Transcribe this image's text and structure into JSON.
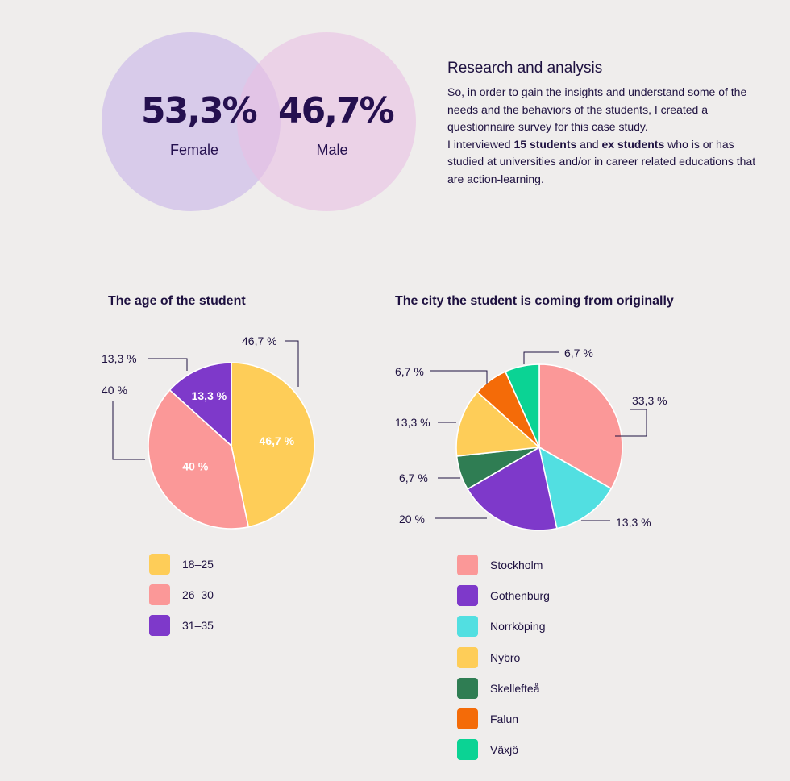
{
  "venn": {
    "female_pct": "53,3%",
    "female_label": "Female",
    "male_pct": "46,7%",
    "male_label": "Male"
  },
  "research": {
    "title": "Research and analysis",
    "p1": "So, in order to gain the insights and understand some of the needs and the behaviors of the students, I created a questionnaire survey for this case study.",
    "p2_a": "I interviewed ",
    "p2_b": "15 students",
    "p2_c": " and ",
    "p2_d": "ex students",
    "p2_e": " who is or has studied at universities and/or in career related educations that are action-learning."
  },
  "chart_data": [
    {
      "type": "pie",
      "title": "The age of the student",
      "categories": [
        "18–25",
        "26–30",
        "31–35"
      ],
      "values": [
        46.7,
        40,
        13.3
      ],
      "labels": [
        "46,7 %",
        "40 %",
        "13,3 %"
      ],
      "colors": [
        "#fecd58",
        "#fb9898",
        "#7e39ca"
      ],
      "legend": "bottom"
    },
    {
      "type": "pie",
      "title": "The city the student is coming from originally",
      "categories": [
        "Stockholm",
        "Norrköping",
        "Gothenburg",
        "Skellefteå",
        "Nybro",
        "Falun",
        "Växjö"
      ],
      "values": [
        33.3,
        13.3,
        20,
        6.7,
        13.3,
        6.7,
        6.7
      ],
      "labels": [
        "33,3 %",
        "13,3 %",
        "20 %",
        "6,7 %",
        "13,3 %",
        "6,7 %",
        "6,7 %"
      ],
      "colors": [
        "#fb9898",
        "#52dfe1",
        "#7e39ca",
        "#2f7d53",
        "#fecd58",
        "#f46b08",
        "#0bd394"
      ],
      "legend_order": [
        "Stockholm",
        "Gothenburg",
        "Norrköping",
        "Nybro",
        "Skellefteå",
        "Falun",
        "Växjö"
      ],
      "legend": "bottom"
    }
  ]
}
